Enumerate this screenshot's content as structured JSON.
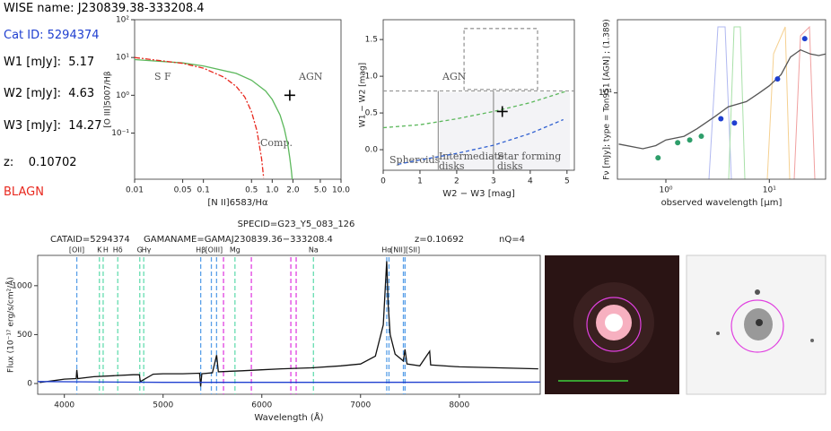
{
  "info": {
    "wise_label": "WISE name:",
    "wise_name": "J230839.38-333208.4",
    "cat_label": "Cat ID:",
    "cat_id": 5294374,
    "w1_label": "W1 [mJy]:",
    "w1": 5.17,
    "w2_label": "W2 [mJy]:",
    "w2": 4.63,
    "w3_label": "W3 [mJy]:",
    "w3": 14.27,
    "z_label": "z:",
    "z": 0.10702,
    "class": "BLAGN"
  },
  "chart_data": [
    {
      "type": "scatter",
      "xlabel": "[N II]6583/Hα",
      "ylabel": "[O III]5007/Hβ",
      "xlog": true,
      "ylog": true,
      "xlim": [
        0.01,
        10
      ],
      "ylim": [
        0.006,
        100
      ],
      "xticks": [
        0.01,
        0.05,
        0.1,
        0.5,
        {
          "value": 1,
          "label": "1.0"
        },
        {
          "value": 2,
          "label": "2.0"
        },
        {
          "value": 5,
          "label": "5.0"
        },
        {
          "value": 10,
          "label": "10.0"
        }
      ],
      "yticks": [
        {
          "value": 0.1,
          "label": "10⁻¹"
        },
        {
          "value": 1,
          "label": "10⁰"
        },
        {
          "value": 10,
          "label": "10¹"
        },
        {
          "value": 100,
          "label": "10²"
        }
      ],
      "annotations": [
        "S F",
        "AGN",
        "Comp."
      ],
      "series": [
        {
          "color": "#5cb85c",
          "style": "solid",
          "x": [
            0.01,
            0.05,
            0.1,
            0.3,
            0.5,
            0.8,
            1.0,
            1.3,
            1.5,
            1.7,
            1.8,
            1.9,
            1.95
          ],
          "values": [
            8.8,
            7.2,
            5.96,
            3.8,
            2.5,
            1.3,
            0.78,
            0.3,
            0.13,
            0.045,
            0.022,
            0.01,
            0.006
          ]
        },
        {
          "color": "#e8281e",
          "style": "dashdot",
          "x": [
            0.01,
            0.05,
            0.1,
            0.2,
            0.3,
            0.4,
            0.5,
            0.6,
            0.7,
            0.75
          ],
          "values": [
            10,
            7.0,
            5.2,
            3.0,
            1.72,
            0.9,
            0.365,
            0.115,
            0.021,
            0.0065
          ]
        },
        {
          "color": "#000000",
          "style": "cross",
          "x": [
            1.8
          ],
          "values": [
            1.0
          ]
        }
      ]
    },
    {
      "type": "scatter",
      "xlabel": "W2 − W3 [mag]",
      "ylabel": "W1 − W2 [mag]",
      "xlog": false,
      "ylog": false,
      "xlim": [
        0,
        5.2
      ],
      "ylim": [
        -0.28,
        1.77
      ],
      "xticks": [
        0,
        1,
        2,
        3,
        4,
        5
      ],
      "yticks": [
        {
          "value": 0,
          "label": "0.0"
        },
        {
          "value": 0.5,
          "label": "0.5"
        },
        {
          "value": 1,
          "label": "1.0"
        },
        {
          "value": 1.5,
          "label": "1.5"
        }
      ],
      "annotations": [
        "AGN",
        "Spheroids",
        "Intermediate",
        "disks",
        "Star forming",
        "disks"
      ],
      "series": [
        {
          "color": "#999999",
          "style": "dashed",
          "x": [
            2.2,
            4.2,
            4.2,
            2.2,
            2.2
          ],
          "values": [
            1.65,
            1.65,
            0.82,
            0.82,
            1.65
          ]
        },
        {
          "color": "#999999",
          "style": "dashed",
          "x": [
            0,
            5.2
          ],
          "values": [
            0.8,
            0.8
          ]
        },
        {
          "color": "#999999",
          "style": "solid",
          "x": [
            1.5,
            1.5
          ],
          "values": [
            -0.28,
            0.8
          ]
        },
        {
          "color": "#999999",
          "style": "solid",
          "x": [
            3.0,
            3.0
          ],
          "values": [
            -0.28,
            0.8
          ]
        },
        {
          "color": "#5cb85c",
          "style": "dashed",
          "x": [
            0,
            1,
            2,
            3,
            4,
            5
          ],
          "values": [
            0.3,
            0.34,
            0.42,
            0.52,
            0.64,
            0.8
          ]
        },
        {
          "color": "#3060d0",
          "style": "dashed",
          "x": [
            0.4,
            1,
            2,
            3,
            4,
            4.9
          ],
          "values": [
            -0.2,
            -0.14,
            -0.05,
            0.06,
            0.22,
            0.41
          ]
        },
        {
          "color": "#000000",
          "style": "cross",
          "x": [
            3.24
          ],
          "values": [
            0.52
          ]
        }
      ]
    },
    {
      "type": "line",
      "xlabel": "observed wavelength [μm]",
      "ylabel": "Fν [mJy]; type = Ton951 [AGN] ; (1.389)",
      "xlog": true,
      "ylog": true,
      "xlim": [
        0.34,
        35
      ],
      "ylim": [
        1.1,
        65
      ],
      "xticks": [
        {
          "value": 1,
          "label": "10⁰"
        },
        {
          "value": 10,
          "label": "10¹"
        }
      ],
      "yticks": [
        {
          "value": 10,
          "label": "10¹"
        }
      ],
      "annotations": [],
      "series": [
        {
          "color": "#555555",
          "style": "solid",
          "x": [
            0.35,
            0.6,
            0.8,
            1.0,
            1.5,
            2.0,
            3.0,
            4.0,
            6,
            8,
            10,
            13,
            16,
            20,
            25,
            30,
            35
          ],
          "values": [
            2.7,
            2.4,
            2.6,
            3.0,
            3.3,
            4.0,
            5.5,
            7,
            8,
            10,
            12,
            16,
            25,
            30,
            27,
            26,
            27
          ]
        },
        {
          "color": "#2e9e6a",
          "style": "points",
          "x": [
            0.84,
            1.3,
            1.7,
            2.2
          ],
          "values": [
            1.9,
            2.8,
            3.0,
            3.3
          ]
        },
        {
          "color": "#1f3fd0",
          "style": "points",
          "x": [
            3.4,
            4.6,
            12,
            22
          ],
          "values": [
            5.17,
            4.63,
            14.27,
            40
          ]
        }
      ]
    },
    {
      "type": "line",
      "title": "SPECID=G23_Y5_083_126",
      "header": [
        "CATAID=5294374",
        "GAMANAME=GAMAJ230839.36−333208.4",
        "z=0.10692",
        "nQ=4"
      ],
      "xlabel": "Wavelength (Å)",
      "ylabel": "Flux (10⁻¹⁷ erg/s/cm²/Å)",
      "xlog": false,
      "ylog": false,
      "xlim": [
        3730,
        8820
      ],
      "ylim": [
        -110,
        1310
      ],
      "xticks": [
        4000,
        5000,
        6000,
        7000,
        8000
      ],
      "yticks": [
        0,
        500,
        1000
      ],
      "annotations": [],
      "line_labels": [
        "[OII]",
        "K",
        "H",
        "Hδ",
        "G",
        "Hγ",
        "Hβ",
        "[OIII]",
        "Mg",
        "Na",
        "Hα",
        "[NII]",
        "[SII]"
      ],
      "line_label_x": [
        4126,
        4355,
        4420,
        4541,
        4764,
        4830,
        5381,
        5515,
        5728,
        6523,
        7265,
        7380,
        7530
      ],
      "series": [
        {
          "color": "#5aa0e8",
          "style": "vlines",
          "x": [
            4126,
            5381,
            5489,
            5542,
            7265,
            7288,
            7434,
            7451
          ]
        },
        {
          "color": "#66ddb0",
          "style": "vlines",
          "x": [
            4355,
            4393,
            4541,
            4764,
            4804,
            5728,
            6523
          ]
        },
        {
          "color": "#e040e0",
          "style": "vlines",
          "x": [
            5612,
            5894,
            6294,
            6348
          ]
        },
        {
          "color": "#111111",
          "style": "solid",
          "x": [
            3750,
            3900,
            4000,
            4120,
            4126,
            4135,
            4300,
            4500,
            4700,
            4760,
            4770,
            4900,
            5000,
            5200,
            5370,
            5381,
            5392,
            5500,
            5542,
            5560,
            5800,
            6000,
            6200,
            6500,
            6800,
            7000,
            7150,
            7230,
            7265,
            7280,
            7300,
            7350,
            7434,
            7450,
            7470,
            7600,
            7700,
            7710,
            8000,
            8400,
            8800
          ],
          "values": [
            10,
            30,
            45,
            50,
            140,
            50,
            70,
            80,
            90,
            90,
            20,
            95,
            100,
            100,
            105,
            -30,
            100,
            110,
            290,
            120,
            130,
            140,
            150,
            160,
            180,
            200,
            280,
            600,
            1250,
            800,
            500,
            300,
            230,
            350,
            200,
            180,
            330,
            190,
            170,
            160,
            150
          ]
        },
        {
          "color": "#1f3fd0",
          "style": "solid",
          "x": [
            3730,
            5000,
            7000,
            8820
          ],
          "values": [
            20,
            12,
            12,
            15
          ]
        }
      ]
    }
  ]
}
